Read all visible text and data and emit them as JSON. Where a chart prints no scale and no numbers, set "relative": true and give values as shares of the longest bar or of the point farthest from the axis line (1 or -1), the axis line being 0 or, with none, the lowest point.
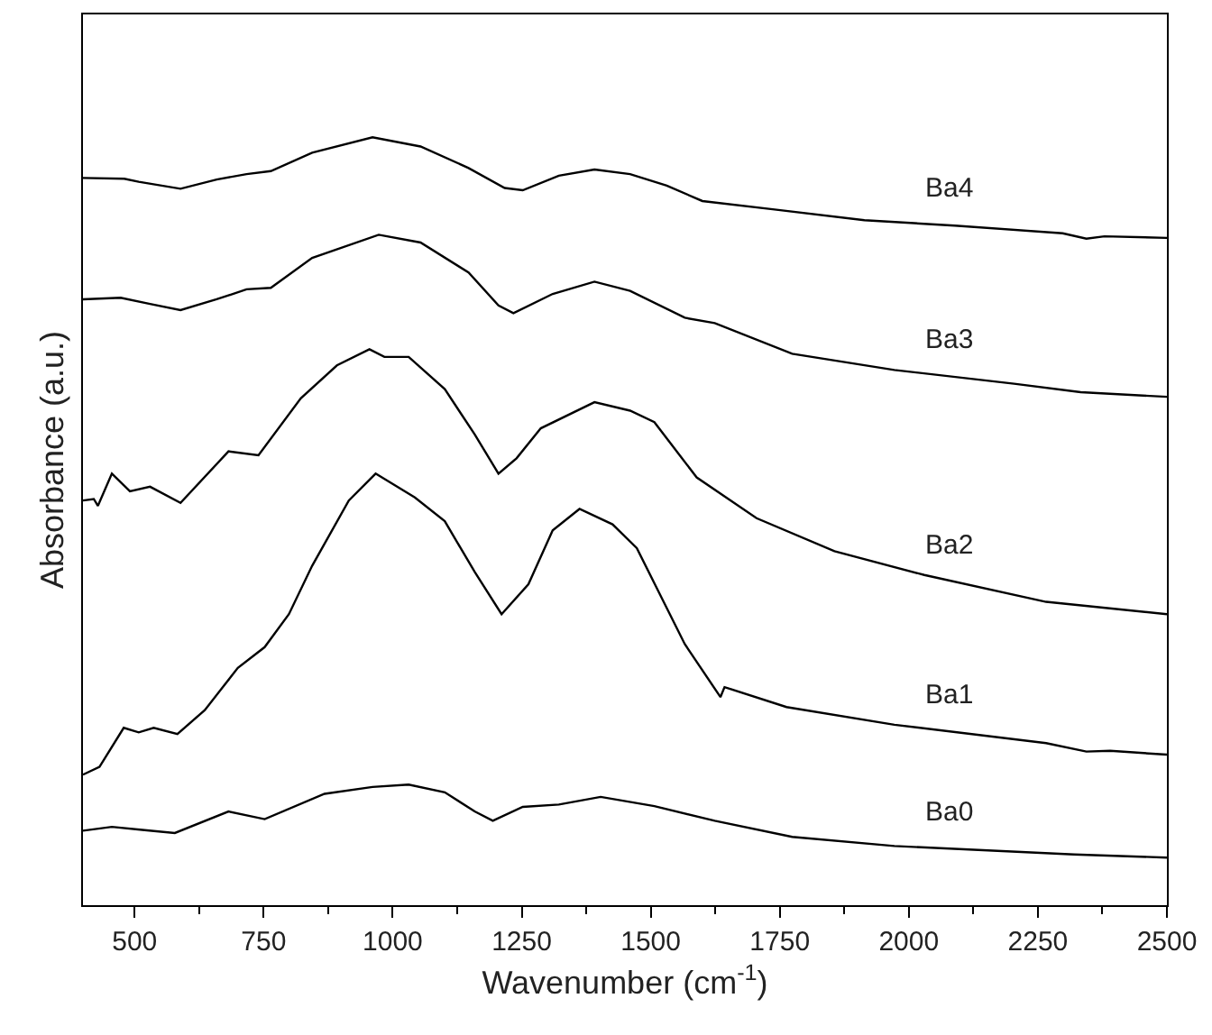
{
  "chart_data": {
    "type": "line",
    "relative": true,
    "xlabel": "Wavenumber (cm$^{-1}$)",
    "ylabel": "Absorbance (a.u.)",
    "xlim": [
      400,
      2500
    ],
    "xticks": [
      500,
      750,
      1000,
      1250,
      1500,
      1750,
      2000,
      2250,
      2500
    ],
    "legend": false,
    "marker": "none",
    "line_style": "solid",
    "series": [
      {
        "name": "Ba4",
        "color": "#000000",
        "x": [
          400,
          480,
          508,
          589,
          659,
          717,
          764,
          844,
          961,
          1054,
          1147,
          1217,
          1252,
          1322,
          1391,
          1460,
          1531,
          1600,
          1740,
          1914,
          2089,
          2298,
          2344,
          2379,
          2500
        ],
        "values": [
          0.947,
          0.946,
          0.942,
          0.933,
          0.945,
          0.952,
          0.956,
          0.98,
          1.0,
          0.988,
          0.96,
          0.934,
          0.931,
          0.95,
          0.958,
          0.952,
          0.937,
          0.917,
          0.906,
          0.892,
          0.885,
          0.875,
          0.868,
          0.871,
          0.869
        ]
      },
      {
        "name": "Ba3",
        "color": "#000000",
        "x": [
          400,
          473,
          530,
          589,
          659,
          717,
          764,
          844,
          973,
          1054,
          1147,
          1205,
          1234,
          1310,
          1391,
          1460,
          1566,
          1624,
          1774,
          1972,
          2204,
          2333,
          2500
        ],
        "values": [
          0.789,
          0.791,
          0.783,
          0.775,
          0.789,
          0.802,
          0.804,
          0.843,
          0.873,
          0.863,
          0.824,
          0.781,
          0.771,
          0.796,
          0.812,
          0.8,
          0.765,
          0.758,
          0.718,
          0.697,
          0.679,
          0.668,
          0.662
        ]
      },
      {
        "name": "Ba2",
        "color": "#000000",
        "x": [
          400,
          421,
          429,
          456,
          491,
          530,
          589,
          682,
          740,
          822,
          892,
          955,
          984,
          1031,
          1101,
          1159,
          1205,
          1240,
          1287,
          1391,
          1460,
          1507,
          1589,
          1705,
          1856,
          2030,
          2266,
          2500
        ],
        "values": [
          0.527,
          0.529,
          0.52,
          0.562,
          0.539,
          0.545,
          0.524,
          0.591,
          0.586,
          0.66,
          0.703,
          0.724,
          0.714,
          0.714,
          0.672,
          0.613,
          0.562,
          0.582,
          0.621,
          0.655,
          0.644,
          0.629,
          0.557,
          0.504,
          0.461,
          0.43,
          0.395,
          0.379
        ]
      },
      {
        "name": "Ba1",
        "color": "#000000",
        "x": [
          400,
          432,
          479,
          508,
          537,
          583,
          636,
          700,
          752,
          799,
          844,
          915,
          967,
          1043,
          1101,
          1159,
          1211,
          1263,
          1310,
          1362,
          1426,
          1473,
          1537,
          1566,
          1635,
          1643,
          1763,
          1972,
          2266,
          2344,
          2390,
          2500
        ],
        "values": [
          0.17,
          0.18,
          0.231,
          0.225,
          0.231,
          0.223,
          0.254,
          0.309,
          0.336,
          0.379,
          0.442,
          0.527,
          0.562,
          0.531,
          0.5,
          0.434,
          0.379,
          0.418,
          0.488,
          0.516,
          0.496,
          0.465,
          0.379,
          0.34,
          0.271,
          0.284,
          0.258,
          0.235,
          0.211,
          0.2,
          0.201,
          0.196
        ]
      },
      {
        "name": "Ba0",
        "color": "#000000",
        "x": [
          400,
          456,
          515,
          578,
          682,
          752,
          868,
          961,
          1031,
          1101,
          1159,
          1194,
          1252,
          1322,
          1403,
          1507,
          1624,
          1774,
          1972,
          2320,
          2500
        ],
        "values": [
          0.097,
          0.102,
          0.098,
          0.094,
          0.122,
          0.112,
          0.145,
          0.154,
          0.157,
          0.147,
          0.122,
          0.11,
          0.128,
          0.131,
          0.141,
          0.129,
          0.11,
          0.089,
          0.077,
          0.066,
          0.062
        ]
      }
    ]
  }
}
